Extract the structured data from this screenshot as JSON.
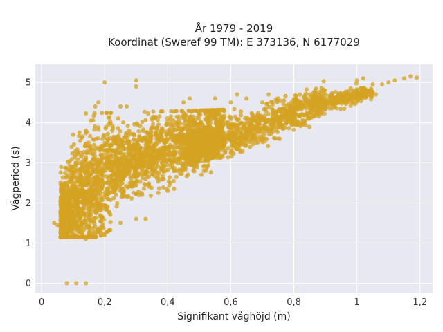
{
  "chart_data": {
    "type": "scatter",
    "title": [
      "År 1979 - 2019",
      "Koordinat (Sweref 99 TM): E 373136, N 6177029"
    ],
    "xlabel": "Signifikant våghöjd (m)",
    "ylabel": "Vågperiod (s)",
    "xlim": [
      -0.02,
      1.24
    ],
    "ylim": [
      -0.25,
      5.45
    ],
    "x_ticks": [
      0,
      0.2,
      0.4,
      0.6,
      0.8,
      1,
      1.2
    ],
    "x_tick_labels": [
      "0",
      "0,2",
      "0,4",
      "0,6",
      "0,8",
      "1",
      "1,2"
    ],
    "y_ticks": [
      0,
      1,
      2,
      3,
      4,
      5
    ],
    "y_tick_labels": [
      "0",
      "1",
      "2",
      "3",
      "4",
      "5"
    ],
    "grid": true,
    "background": "#e8e8f0",
    "marker_color": "#d4a322",
    "series": [
      {
        "points": [
          [
            0.08,
            0.0
          ],
          [
            0.11,
            0.0
          ],
          [
            0.14,
            0.0
          ],
          [
            0.04,
            1.5
          ],
          [
            0.05,
            1.45
          ],
          [
            0.06,
            1.55
          ],
          [
            0.07,
            1.5
          ],
          [
            0.08,
            1.6
          ],
          [
            0.1,
            3.7
          ],
          [
            0.12,
            3.75
          ],
          [
            0.14,
            3.8
          ],
          [
            0.2,
            5.0
          ],
          [
            0.3,
            5.05
          ],
          [
            0.3,
            4.9
          ],
          [
            0.17,
            4.4
          ],
          [
            0.18,
            4.5
          ],
          [
            0.25,
            4.4
          ],
          [
            0.27,
            4.4
          ],
          [
            0.14,
            1.1
          ],
          [
            0.16,
            1.15
          ],
          [
            0.2,
            1.2
          ],
          [
            0.25,
            1.5
          ],
          [
            0.3,
            1.6
          ],
          [
            0.33,
            1.6
          ],
          [
            0.37,
            2.25
          ],
          [
            0.4,
            2.3
          ],
          [
            0.42,
            2.35
          ],
          [
            0.33,
            2.7
          ],
          [
            0.34,
            2.65
          ],
          [
            0.45,
            4.5
          ],
          [
            0.47,
            4.6
          ],
          [
            0.55,
            4.6
          ],
          [
            0.6,
            4.5
          ],
          [
            0.62,
            4.7
          ],
          [
            0.65,
            4.6
          ],
          [
            0.7,
            4.5
          ],
          [
            0.72,
            4.7
          ],
          [
            0.75,
            4.6
          ],
          [
            0.6,
            3.6
          ],
          [
            0.65,
            3.55
          ],
          [
            0.7,
            3.6
          ],
          [
            0.75,
            3.6
          ],
          [
            0.8,
            4.4
          ],
          [
            0.82,
            4.5
          ],
          [
            0.85,
            4.7
          ],
          [
            0.88,
            4.6
          ],
          [
            0.9,
            4.6
          ],
          [
            0.92,
            4.6
          ],
          [
            0.95,
            4.65
          ],
          [
            0.97,
            4.7
          ],
          [
            1.0,
            4.8
          ],
          [
            1.02,
            4.85
          ],
          [
            1.0,
            5.05
          ],
          [
            1.02,
            5.1
          ],
          [
            1.05,
            4.95
          ],
          [
            1.08,
            4.95
          ],
          [
            1.1,
            5.0
          ],
          [
            1.12,
            5.05
          ],
          [
            1.15,
            5.1
          ],
          [
            1.17,
            5.15
          ],
          [
            1.19,
            5.12
          ],
          [
            1.05,
            4.75
          ],
          [
            1.06,
            4.7
          ],
          [
            0.98,
            4.85
          ],
          [
            0.9,
            4.7
          ],
          [
            0.85,
            4.35
          ]
        ]
      }
    ]
  }
}
